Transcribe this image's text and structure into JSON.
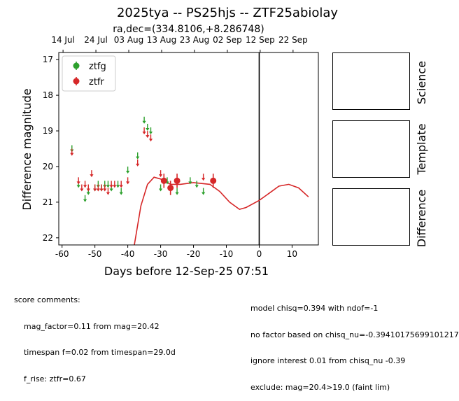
{
  "header": {
    "title": "2025tya -- PS25hjs -- ZTF25abiolay",
    "subtitle": "ra,dec=(334.8106,+8.286748)"
  },
  "side_panels": {
    "labels": [
      "Science",
      "Template",
      "Difference"
    ]
  },
  "footer": {
    "left_lines": [
      "score comments:",
      "    mag_factor=0.11 from mag=20.42",
      "    timespan f=0.02 from timespan=29.0d",
      "    f_rise: ztfr=0.67"
    ],
    "right_lines": [
      "model chisq=0.394 with ndof=-1",
      "no factor based on chisq_nu=-0.39410175699101217",
      "ignore interest 0.01 from chisq_nu -0.39",
      "exclude: mag=20.4>19.0 (faint lim)"
    ]
  },
  "chart_data": {
    "type": "scatter",
    "xlabel": "Days before 12-Sep-25 07:51",
    "ylabel": "Difference magnitude",
    "xlim": [
      -61,
      18
    ],
    "ylim": [
      22.2,
      16.8
    ],
    "y_inverted": true,
    "xticks": [
      -60,
      -50,
      -40,
      -30,
      -20,
      -10,
      0,
      10
    ],
    "yticks": [
      17,
      18,
      19,
      20,
      21,
      22
    ],
    "top_axis_ticks": [
      {
        "x": -59.7,
        "label": "14 Jul"
      },
      {
        "x": -49.7,
        "label": "24 Jul"
      },
      {
        "x": -39.7,
        "label": "03 Aug"
      },
      {
        "x": -29.7,
        "label": "13 Aug"
      },
      {
        "x": -19.7,
        "label": "23 Aug"
      },
      {
        "x": -9.7,
        "label": "02 Sep"
      },
      {
        "x": 0.3,
        "label": "12 Sep"
      },
      {
        "x": 10.3,
        "label": "22 Sep"
      }
    ],
    "reference_line_x": 0,
    "legend_position": "upper-left",
    "series": [
      {
        "name": "ztfg",
        "color": "#2ca02c",
        "kind": "upper_limit",
        "points": [
          {
            "x": -57,
            "y": 19.5
          },
          {
            "x": -55,
            "y": 20.5
          },
          {
            "x": -53,
            "y": 20.9
          },
          {
            "x": -52,
            "y": 20.7
          },
          {
            "x": -50,
            "y": 20.6
          },
          {
            "x": -49,
            "y": 20.5
          },
          {
            "x": -48,
            "y": 20.6
          },
          {
            "x": -47,
            "y": 20.5
          },
          {
            "x": -46,
            "y": 20.5
          },
          {
            "x": -45,
            "y": 20.6
          },
          {
            "x": -43,
            "y": 20.5
          },
          {
            "x": -42,
            "y": 20.7
          },
          {
            "x": -40,
            "y": 20.1
          },
          {
            "x": -37,
            "y": 19.7
          },
          {
            "x": -35,
            "y": 18.7
          },
          {
            "x": -34,
            "y": 18.9
          },
          {
            "x": -33,
            "y": 19.0
          },
          {
            "x": -30,
            "y": 20.6
          },
          {
            "x": -28,
            "y": 20.4
          },
          {
            "x": -25,
            "y": 20.7
          },
          {
            "x": -21,
            "y": 20.4
          },
          {
            "x": -19,
            "y": 20.5
          },
          {
            "x": -17,
            "y": 20.7
          }
        ]
      },
      {
        "name": "ztfr",
        "color": "#d62728",
        "kind": "upper_limit",
        "points": [
          {
            "x": -57,
            "y": 19.6
          },
          {
            "x": -55,
            "y": 20.4
          },
          {
            "x": -54,
            "y": 20.6
          },
          {
            "x": -53,
            "y": 20.5
          },
          {
            "x": -52,
            "y": 20.6
          },
          {
            "x": -51,
            "y": 20.2
          },
          {
            "x": -50,
            "y": 20.6
          },
          {
            "x": -49,
            "y": 20.6
          },
          {
            "x": -48,
            "y": 20.6
          },
          {
            "x": -47,
            "y": 20.6
          },
          {
            "x": -46,
            "y": 20.7
          },
          {
            "x": -45,
            "y": 20.5
          },
          {
            "x": -44,
            "y": 20.5
          },
          {
            "x": -42,
            "y": 20.5
          },
          {
            "x": -40,
            "y": 20.4
          },
          {
            "x": -37,
            "y": 19.9
          },
          {
            "x": -35,
            "y": 19.0
          },
          {
            "x": -34,
            "y": 19.1
          },
          {
            "x": -33,
            "y": 19.2
          },
          {
            "x": -30,
            "y": 20.2
          },
          {
            "x": -17,
            "y": 20.3
          }
        ]
      },
      {
        "name": "ztfr",
        "color": "#d62728",
        "kind": "detection",
        "points": [
          {
            "x": -29,
            "y": 20.4,
            "err": 0.2
          },
          {
            "x": -27,
            "y": 20.6,
            "err": 0.2
          },
          {
            "x": -25,
            "y": 20.4,
            "err": 0.2
          },
          {
            "x": -14,
            "y": 20.4,
            "err": 0.2
          }
        ]
      },
      {
        "name": "",
        "color": "#d62728",
        "kind": "model_line",
        "points": [
          {
            "x": -38,
            "y": 22.2
          },
          {
            "x": -36,
            "y": 21.1
          },
          {
            "x": -34,
            "y": 20.5
          },
          {
            "x": -32,
            "y": 20.3
          },
          {
            "x": -30,
            "y": 20.35
          },
          {
            "x": -27,
            "y": 20.5
          },
          {
            "x": -24,
            "y": 20.5
          },
          {
            "x": -20,
            "y": 20.45
          },
          {
            "x": -15,
            "y": 20.5
          },
          {
            "x": -12,
            "y": 20.7
          },
          {
            "x": -9,
            "y": 21.0
          },
          {
            "x": -6,
            "y": 21.2
          },
          {
            "x": -4,
            "y": 21.15
          },
          {
            "x": 0,
            "y": 20.95
          },
          {
            "x": 3,
            "y": 20.75
          },
          {
            "x": 6,
            "y": 20.55
          },
          {
            "x": 9,
            "y": 20.5
          },
          {
            "x": 12,
            "y": 20.6
          },
          {
            "x": 15,
            "y": 20.85
          }
        ]
      }
    ]
  }
}
